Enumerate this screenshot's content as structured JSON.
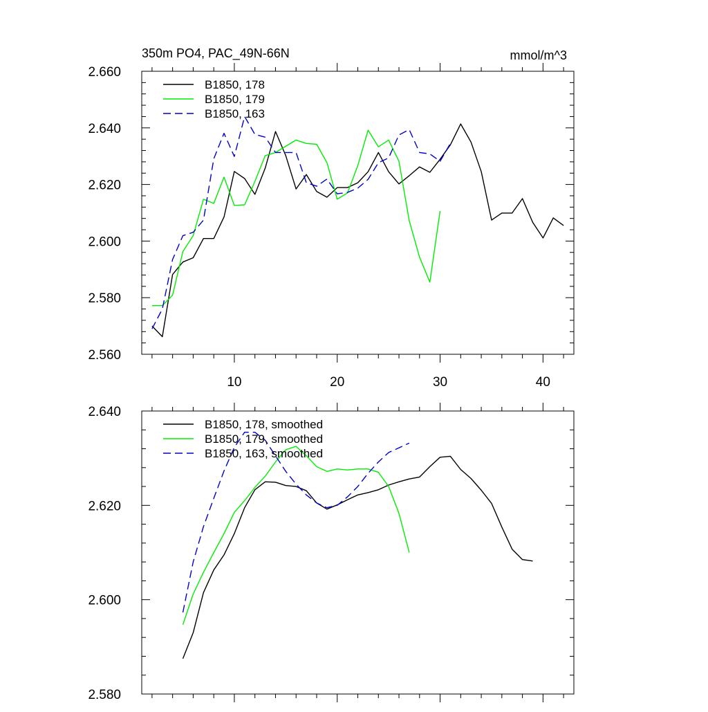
{
  "chart_data": [
    {
      "type": "line",
      "title": "350m PO4, PAC_49N-66N",
      "units": "mmol/m^3",
      "xlabel": "",
      "ylabel": "",
      "xlim": [
        1,
        43
      ],
      "ylim": [
        2.56,
        2.66
      ],
      "yticks": [
        2.56,
        2.58,
        2.6,
        2.62,
        2.64,
        2.66
      ],
      "ytick_labels": [
        "2.560",
        "2.580",
        "2.600",
        "2.620",
        "2.640",
        "2.660"
      ],
      "xticks": [
        10,
        20,
        30,
        40
      ],
      "xtick_labels": [
        "10",
        "20",
        "30",
        "40"
      ],
      "legend_position": "top-left",
      "series": [
        {
          "name": "B1850, 178",
          "color": "#000000",
          "dash": "solid",
          "x": [
            2,
            3,
            4,
            5,
            6,
            7,
            8,
            9,
            10,
            11,
            12,
            13,
            14,
            15,
            16,
            17,
            18,
            19,
            20,
            21,
            22,
            23,
            24,
            25,
            26,
            27,
            28,
            29,
            30,
            31,
            32,
            33,
            34,
            35,
            36,
            37,
            38,
            39,
            40,
            41,
            42
          ],
          "values": [
            2.57,
            2.5662,
            2.5882,
            2.5926,
            2.5941,
            2.6009,
            2.6009,
            2.6085,
            2.6246,
            2.6221,
            2.6165,
            2.6258,
            2.6387,
            2.6302,
            2.6184,
            2.6235,
            2.6175,
            2.6155,
            2.6189,
            2.6189,
            2.6206,
            2.6245,
            2.6313,
            2.6245,
            2.6202,
            2.6231,
            2.6262,
            2.6243,
            2.6289,
            2.634,
            2.6414,
            2.635,
            2.6245,
            2.6074,
            2.6099,
            2.6099,
            2.615,
            2.6066,
            2.6011,
            2.6082,
            2.6055
          ]
        },
        {
          "name": "B1850, 179",
          "color": "#00ee00",
          "dash": "solid",
          "x": [
            2,
            3,
            4,
            5,
            6,
            7,
            8,
            9,
            10,
            11,
            12,
            13,
            14,
            15,
            16,
            17,
            18,
            19,
            20,
            21,
            22,
            23,
            24,
            25,
            26,
            27,
            28,
            29,
            30
          ],
          "values": [
            2.5772,
            2.5772,
            2.5809,
            2.5963,
            2.6019,
            2.6148,
            2.6133,
            2.6226,
            2.6126,
            2.6128,
            2.6211,
            2.6302,
            2.6313,
            2.6335,
            2.6357,
            2.6345,
            2.6342,
            2.6277,
            2.6148,
            2.617,
            2.6267,
            2.6392,
            2.6333,
            2.6357,
            2.6282,
            2.6072,
            2.5943,
            2.5855,
            2.6106
          ]
        },
        {
          "name": "B1850, 163",
          "color": "#0000cc",
          "dash": "dashed",
          "x": [
            2,
            3,
            4,
            5,
            6,
            7,
            8,
            9,
            10,
            11,
            12,
            13,
            14,
            15,
            16,
            17,
            18,
            19,
            20,
            21,
            22,
            23,
            24,
            25,
            26,
            27,
            28,
            29,
            30,
            31
          ],
          "values": [
            2.569,
            2.576,
            2.5935,
            2.6019,
            2.6031,
            2.6074,
            2.6291,
            2.6381,
            2.6299,
            2.644,
            2.6377,
            2.6367,
            2.6313,
            2.6313,
            2.6313,
            2.6206,
            2.6194,
            2.6219,
            2.6167,
            2.6172,
            2.6187,
            2.6218,
            2.6277,
            2.6294,
            2.6375,
            2.6394,
            2.6313,
            2.6308,
            2.6282,
            2.6345
          ]
        }
      ]
    },
    {
      "type": "line",
      "title": "",
      "units": "",
      "xlabel": "",
      "ylabel": "",
      "xlim": [
        1,
        43
      ],
      "ylim": [
        2.58,
        2.64
      ],
      "yticks": [
        2.58,
        2.6,
        2.62,
        2.64
      ],
      "ytick_labels": [
        "2.580",
        "2.600",
        "2.620",
        "2.640"
      ],
      "xticks": [
        10,
        20,
        30,
        40
      ],
      "xtick_labels": [],
      "legend_position": "top-left",
      "series": [
        {
          "name": "B1850, 178, smoothed",
          "color": "#000000",
          "dash": "solid",
          "x": [
            5,
            6,
            7,
            8,
            9,
            10,
            11,
            12,
            13,
            14,
            15,
            16,
            17,
            18,
            19,
            20,
            21,
            22,
            23,
            24,
            25,
            26,
            27,
            28,
            29,
            30,
            31,
            32,
            33,
            34,
            35,
            36,
            37,
            38,
            39
          ],
          "values": [
            2.5875,
            2.593,
            2.6015,
            2.6063,
            2.6095,
            2.614,
            2.6195,
            2.6233,
            2.625,
            2.6249,
            2.6242,
            2.624,
            2.6231,
            2.6205,
            2.6192,
            2.6201,
            2.6212,
            2.6222,
            2.6227,
            2.6233,
            2.6243,
            2.625,
            2.6256,
            2.626,
            2.6282,
            2.6302,
            2.6304,
            2.6276,
            2.6257,
            2.6232,
            2.6204,
            2.6154,
            2.6107,
            2.6085,
            2.6082
          ]
        },
        {
          "name": "B1850, 179, smoothed",
          "color": "#00ee00",
          "dash": "solid",
          "x": [
            5,
            6,
            7,
            8,
            9,
            10,
            11,
            12,
            13,
            14,
            15,
            16,
            17,
            18,
            19,
            20,
            21,
            22,
            23,
            24,
            25,
            26,
            27
          ],
          "values": [
            2.5947,
            2.6012,
            2.6058,
            2.61,
            2.614,
            2.6185,
            2.621,
            2.6238,
            2.6262,
            2.6292,
            2.6318,
            2.6325,
            2.6305,
            2.6282,
            2.6272,
            2.6277,
            2.6275,
            2.6277,
            2.6277,
            2.627,
            2.624,
            2.6183,
            2.61
          ]
        },
        {
          "name": "B1850, 163, smoothed",
          "color": "#0000cc",
          "dash": "dashed",
          "x": [
            5,
            6,
            7,
            8,
            9,
            10,
            11,
            12,
            13,
            14,
            15,
            16,
            17,
            18,
            19,
            20,
            21,
            22,
            23,
            24,
            25,
            26,
            27
          ],
          "values": [
            2.5973,
            2.608,
            2.6155,
            2.6215,
            2.6273,
            2.6323,
            2.6355,
            2.6355,
            2.6338,
            2.6305,
            2.6272,
            2.6245,
            2.6222,
            2.6205,
            2.6195,
            2.62,
            2.6218,
            2.624,
            2.6268,
            2.6292,
            2.6312,
            2.6322,
            2.6332
          ]
        }
      ]
    }
  ]
}
